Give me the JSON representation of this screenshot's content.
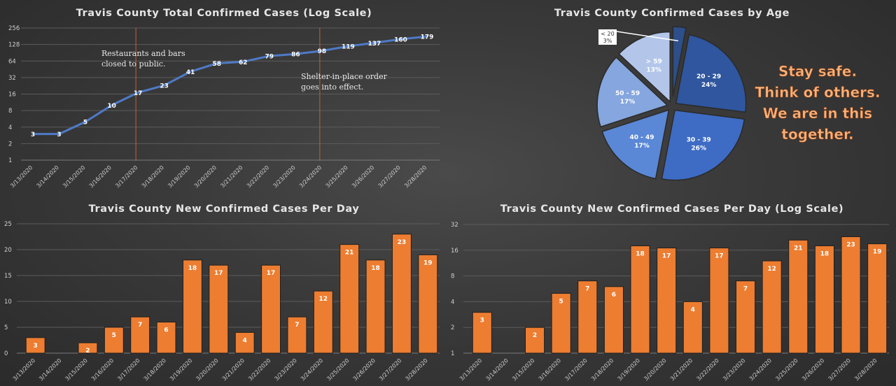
{
  "chart_data": [
    {
      "type": "line",
      "title": "Travis County Total Confirmed Cases (Log Scale)",
      "scale": "log2",
      "yticks": [
        1,
        2,
        4,
        8,
        16,
        32,
        64,
        128,
        256
      ],
      "ytick_labels": [
        "1",
        "2",
        "4",
        "8",
        "16",
        "32",
        "64",
        "128",
        "256"
      ],
      "ylim": [
        1,
        256
      ],
      "categories": [
        "3/13/2020",
        "3/14/2020",
        "3/15/2020",
        "3/16/2020",
        "3/17/2020",
        "3/18/2020",
        "3/19/2020",
        "3/20/2020",
        "3/21/2020",
        "3/22/2020",
        "3/23/2020",
        "3/24/2020",
        "3/25/2020",
        "3/26/2020",
        "3/27/2020",
        "3/28/2020"
      ],
      "values": [
        3,
        3,
        5,
        10,
        17,
        23,
        41,
        58,
        62,
        79,
        86,
        98,
        119,
        137,
        160,
        179
      ],
      "line_color": "#4f7ac7",
      "event_color": "#c0603a",
      "annotations": [
        {
          "category": "3/17/2020",
          "lines": [
            "Restaurants and bars",
            "closed to public."
          ]
        },
        {
          "category": "3/24/2020",
          "lines": [
            "Shelter-in-place order",
            "goes into effect."
          ]
        }
      ]
    },
    {
      "type": "pie",
      "title": "Travis County Confirmed Cases by Age",
      "slices": [
        {
          "label": "< 20",
          "pct_label": "3%",
          "value": 3,
          "color": "#2d4f8a"
        },
        {
          "label": "20 - 29",
          "pct_label": "24%",
          "value": 24,
          "color": "#2f569e"
        },
        {
          "label": "30 - 39",
          "pct_label": "26%",
          "value": 26,
          "color": "#3e6cc4"
        },
        {
          "label": "40 - 49",
          "pct_label": "17%",
          "value": 17,
          "color": "#5a88d6"
        },
        {
          "label": "50 - 59",
          "pct_label": "17%",
          "value": 17,
          "color": "#85a6de"
        },
        {
          "label": "> 59",
          "pct_label": "13%",
          "value": 13,
          "color": "#b3c6ea"
        }
      ],
      "message": [
        "Stay safe.",
        "Think of others.",
        "We are in this",
        "together."
      ],
      "message_color": "#f7b27a"
    },
    {
      "type": "bar",
      "title": "Travis County New Confirmed Cases Per Day",
      "scale": "linear",
      "yticks": [
        0,
        5,
        10,
        15,
        20,
        25
      ],
      "ytick_labels": [
        "0",
        "5",
        "10",
        "15",
        "20",
        "25"
      ],
      "ylim": [
        0,
        25
      ],
      "categories": [
        "3/13/2020",
        "3/14/2020",
        "3/15/2020",
        "3/16/2020",
        "3/17/2020",
        "3/18/2020",
        "3/19/2020",
        "3/20/2020",
        "3/21/2020",
        "3/22/2020",
        "3/23/2020",
        "3/24/2020",
        "3/25/2020",
        "3/26/2020",
        "3/27/2020",
        "3/28/2020"
      ],
      "values": [
        3,
        0,
        2,
        5,
        7,
        6,
        18,
        17,
        4,
        17,
        7,
        12,
        21,
        18,
        23,
        19
      ],
      "labels": [
        "3",
        "",
        "2",
        "5",
        "7",
        "6",
        "18",
        "17",
        "4",
        "17",
        "7",
        "12",
        "21",
        "18",
        "23",
        "19"
      ],
      "bar_color": "#ed7d31"
    },
    {
      "type": "bar",
      "title": "Travis County New Confirmed Cases Per Day (Log Scale)",
      "scale": "log2",
      "yticks": [
        1,
        2,
        4,
        8,
        16,
        32
      ],
      "ytick_labels": [
        "1",
        "2",
        "4",
        "8",
        "16",
        "32"
      ],
      "ylim": [
        1,
        32
      ],
      "categories": [
        "3/13/2020",
        "3/14/2020",
        "3/15/2020",
        "3/16/2020",
        "3/17/2020",
        "3/18/2020",
        "3/19/2020",
        "3/20/2020",
        "3/21/2020",
        "3/22/2020",
        "3/23/2020",
        "3/24/2020",
        "3/25/2020",
        "3/26/2020",
        "3/27/2020",
        "3/28/2020"
      ],
      "values": [
        3,
        0,
        2,
        5,
        7,
        6,
        18,
        17,
        4,
        17,
        7,
        12,
        21,
        18,
        23,
        19
      ],
      "labels": [
        "3",
        "",
        "2",
        "5",
        "7",
        "6",
        "18",
        "17",
        "4",
        "17",
        "7",
        "12",
        "21",
        "18",
        "23",
        "19"
      ],
      "bar_color": "#ed7d31"
    }
  ]
}
